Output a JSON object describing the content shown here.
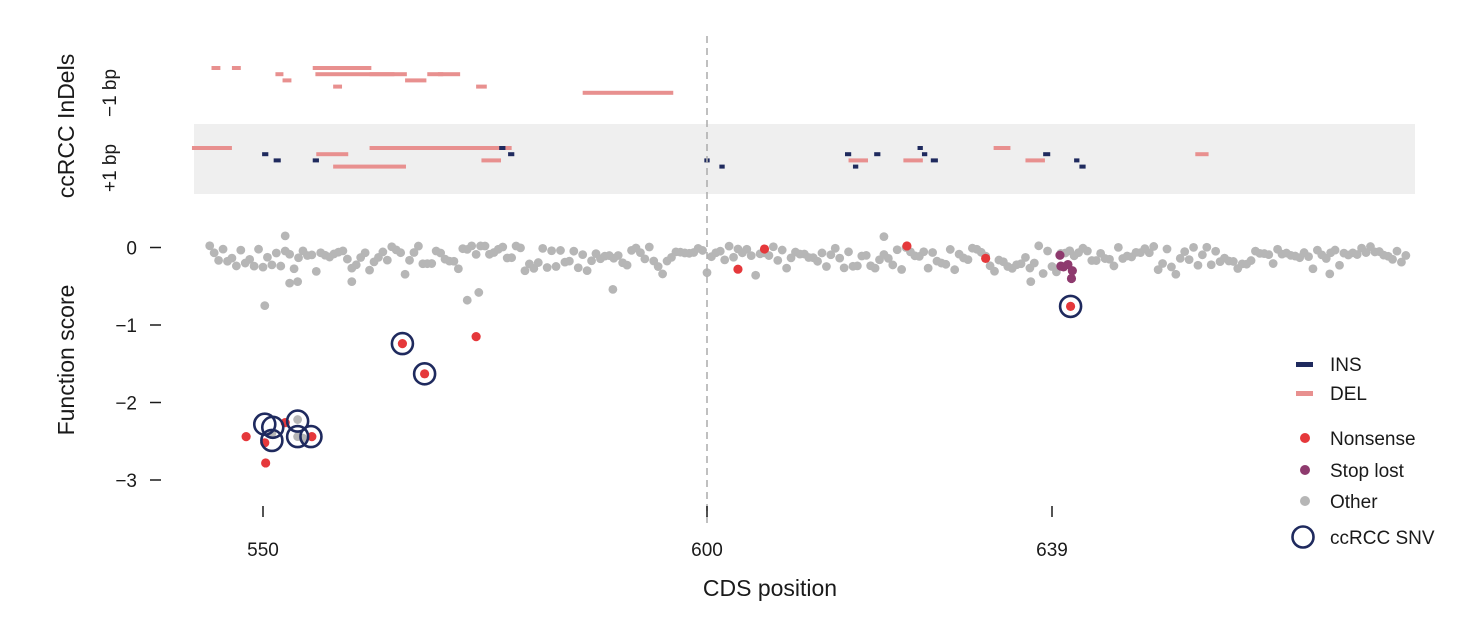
{
  "chart_data": {
    "type": "scatter",
    "x_axis": {
      "label": "CDS position",
      "ticks": [
        550,
        600,
        639
      ],
      "xlim": [
        542,
        680
      ]
    },
    "y_axis": {
      "label": "Function score",
      "ticks": [
        "0",
        "−1",
        "−2",
        "−3"
      ],
      "tick_values": [
        0,
        -1,
        -2,
        -3
      ],
      "ylim": [
        -3.5,
        0.35
      ]
    },
    "reference_line": {
      "x": 600,
      "style": "dashed",
      "color": "#b0b0b0"
    },
    "indel_panel": {
      "title": "ccRCC InDels",
      "rows": [
        "−1 bp",
        "+1 bp"
      ],
      "highlight_row": "+1 bp",
      "deletions_minus1": [
        [
          544.2,
          545.2,
          1
        ],
        [
          546.5,
          547.5,
          1
        ],
        [
          551.4,
          552.3,
          2
        ],
        [
          552.2,
          553.2,
          3
        ],
        [
          557.9,
          558.9,
          4
        ],
        [
          555.6,
          561.7,
          1
        ],
        [
          555.9,
          566.2,
          2
        ],
        [
          560.0,
          562.2,
          1
        ],
        [
          562.0,
          564.8,
          2
        ],
        [
          566.0,
          568.4,
          3
        ],
        [
          568.5,
          570.3,
          2
        ],
        [
          569.7,
          572.2,
          2
        ],
        [
          574.0,
          575.2,
          4
        ],
        [
          586.0,
          596.2,
          5
        ]
      ],
      "deletions_plus1": [
        [
          542.0,
          546.5,
          1
        ],
        [
          557.9,
          566.1,
          4
        ],
        [
          556.0,
          559.6,
          2
        ],
        [
          562.0,
          578.0,
          1
        ],
        [
          574.6,
          576.8,
          3
        ],
        [
          616.0,
          618.2,
          3
        ],
        [
          622.2,
          624.4,
          3
        ],
        [
          632.4,
          634.3,
          1
        ],
        [
          636.0,
          638.2,
          3
        ],
        [
          655.2,
          656.7,
          2
        ]
      ],
      "insertions_plus1": [
        [
          549.9,
          550.6,
          2
        ],
        [
          551.2,
          552.0,
          3
        ],
        [
          555.6,
          556.3,
          3
        ],
        [
          576.6,
          577.3,
          1
        ],
        [
          577.6,
          578.3,
          2
        ],
        [
          599.7,
          600.3,
          3
        ],
        [
          601.4,
          602.0,
          4
        ],
        [
          615.6,
          616.3,
          2
        ],
        [
          616.5,
          617.1,
          4
        ],
        [
          618.9,
          619.6,
          2
        ],
        [
          623.8,
          624.4,
          1
        ],
        [
          624.3,
          624.9,
          2
        ],
        [
          625.3,
          626.1,
          3
        ],
        [
          638.0,
          638.8,
          2
        ],
        [
          641.5,
          642.1,
          3
        ],
        [
          642.1,
          642.8,
          4
        ]
      ]
    },
    "series": [
      {
        "name": "Nonsense",
        "color": "#e5383b",
        "points": [
          [
            548.1,
            -2.44
          ],
          [
            550.2,
            -2.52
          ],
          [
            550.3,
            -2.78
          ],
          [
            552.5,
            -2.26
          ],
          [
            555.5,
            -2.44
          ],
          [
            565.7,
            -1.24
          ],
          [
            568.2,
            -1.63
          ],
          [
            574.0,
            -1.15
          ],
          [
            603.5,
            -0.28
          ],
          [
            606.5,
            -0.02
          ],
          [
            622.6,
            0.02
          ],
          [
            631.5,
            -0.14
          ],
          [
            641.1,
            -0.76
          ]
        ]
      },
      {
        "name": "Stop lost",
        "color": "#8e3a6e",
        "points": [
          [
            639.9,
            -0.1
          ],
          [
            640.0,
            -0.24
          ],
          [
            640.3,
            -0.25
          ],
          [
            640.8,
            -0.22
          ],
          [
            641.2,
            -0.4
          ],
          [
            641.3,
            -0.3
          ]
        ]
      },
      {
        "name": "Other",
        "color": "#b6b6b6"
      },
      {
        "name": "ccRCC SNV",
        "color": "#1f2a5e",
        "points": [
          [
            551.1,
            -2.32
          ],
          [
            551.0,
            -2.49
          ],
          [
            550.2,
            -2.28
          ],
          [
            553.9,
            -2.24
          ],
          [
            553.9,
            -2.44
          ],
          [
            555.4,
            -2.44
          ],
          [
            565.7,
            -1.24
          ],
          [
            568.2,
            -1.63
          ],
          [
            641.1,
            -0.76
          ]
        ]
      }
    ],
    "legend": {
      "position": "right",
      "entries": [
        {
          "label": "INS",
          "marker": "dash",
          "color": "#1f2a5e"
        },
        {
          "label": "DEL",
          "marker": "dash",
          "color": "#e8908f"
        },
        {
          "label": "Nonsense",
          "marker": "dot",
          "color": "#e5383b"
        },
        {
          "label": "Stop lost",
          "marker": "dot",
          "color": "#8e3a6e"
        },
        {
          "label": "Other",
          "marker": "dot",
          "color": "#b6b6b6"
        },
        {
          "label": "ccRCC SNV",
          "marker": "ring",
          "color": "#1f2a5e"
        }
      ]
    },
    "panel_background": "#efefef"
  }
}
